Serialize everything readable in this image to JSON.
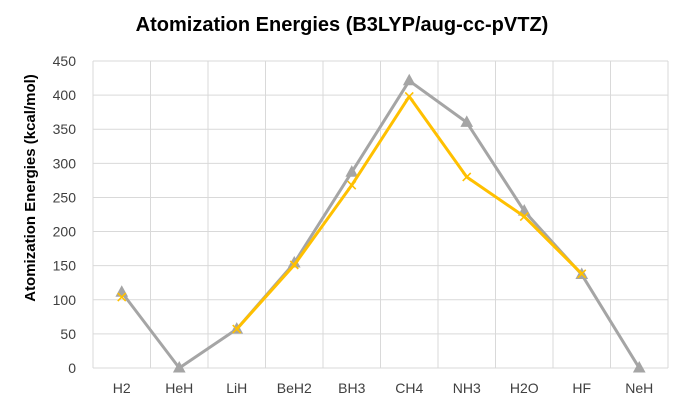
{
  "chart_data": {
    "type": "line",
    "title": "Atomization Energies (B3LYP/aug-cc-pVTZ)",
    "xlabel": "",
    "ylabel": "Atomization Energies (kcal/mol)",
    "categories": [
      "H2",
      "HeH",
      "LiH",
      "BeH2",
      "BH3",
      "CH4",
      "NH3",
      "H2O",
      "HF",
      "NeH"
    ],
    "ylim": [
      0,
      450
    ],
    "yticks": [
      0,
      50,
      100,
      150,
      200,
      250,
      300,
      350,
      400,
      450
    ],
    "grid": true,
    "legend": "none",
    "series": [
      {
        "color": "#A5A5A5",
        "marker": "triangle",
        "values": [
          111,
          0,
          57,
          154,
          287,
          421,
          360,
          230,
          137,
          0
        ]
      },
      {
        "color": "#FFC000",
        "marker": "x",
        "values": [
          104,
          null,
          57,
          151,
          268,
          398,
          280,
          222,
          138,
          null
        ]
      }
    ]
  }
}
